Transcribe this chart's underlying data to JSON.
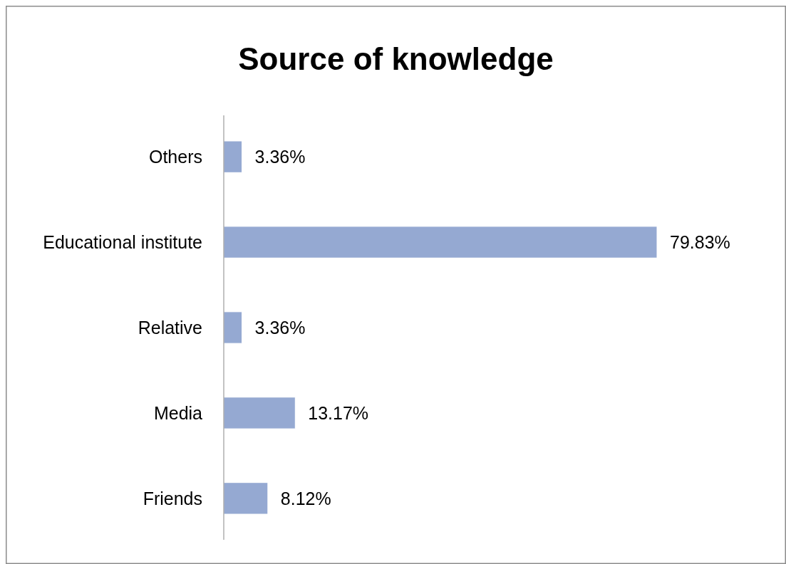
{
  "chart_data": {
    "type": "bar",
    "orientation": "horizontal",
    "title": "Source of knowledge",
    "categories": [
      "Others",
      "Educational institute",
      "Relative",
      "Media",
      "Friends"
    ],
    "values": [
      3.36,
      79.83,
      3.36,
      13.17,
      8.12
    ],
    "value_labels": [
      "3.36%",
      "79.83%",
      "3.36%",
      "13.17%",
      "8.12%"
    ],
    "color": "#95a9d2"
  }
}
